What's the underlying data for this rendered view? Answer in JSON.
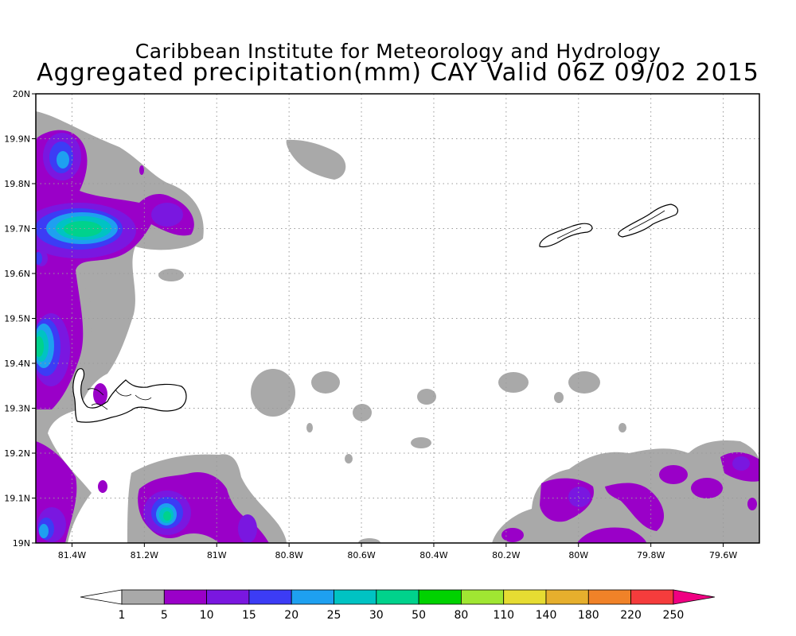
{
  "title_line1": "Caribbean Institute for Meteorology and Hydrology",
  "title_line2": "Aggregated precipitation(mm) CAY Valid 06Z 09/02 2015",
  "map": {
    "lon_range": [
      -81.5,
      -79.5
    ],
    "lat_range": [
      19.0,
      20.0
    ],
    "grid": "dotted",
    "lon_ticks": [
      {
        "value": -81.4,
        "label": "81.4W"
      },
      {
        "value": -81.2,
        "label": "81.2W"
      },
      {
        "value": -81.0,
        "label": "81W"
      },
      {
        "value": -80.8,
        "label": "80.8W"
      },
      {
        "value": -80.6,
        "label": "80.6W"
      },
      {
        "value": -80.4,
        "label": "80.4W"
      },
      {
        "value": -80.2,
        "label": "80.2W"
      },
      {
        "value": -80.0,
        "label": "80W"
      },
      {
        "value": -79.8,
        "label": "79.8W"
      },
      {
        "value": -79.6,
        "label": "79.6W"
      }
    ],
    "lat_ticks": [
      {
        "value": 19.0,
        "label": "19N"
      },
      {
        "value": 19.1,
        "label": "19.1N"
      },
      {
        "value": 19.2,
        "label": "19.2N"
      },
      {
        "value": 19.3,
        "label": "19.3N"
      },
      {
        "value": 19.4,
        "label": "19.4N"
      },
      {
        "value": 19.5,
        "label": "19.5N"
      },
      {
        "value": 19.6,
        "label": "19.6N"
      },
      {
        "value": 19.7,
        "label": "19.7N"
      },
      {
        "value": 19.8,
        "label": "19.8N"
      },
      {
        "value": 19.9,
        "label": "19.9N"
      },
      {
        "value": 20.0,
        "label": "20N"
      }
    ]
  },
  "colorbar": {
    "labels": [
      "1",
      "5",
      "10",
      "15",
      "20",
      "25",
      "30",
      "50",
      "80",
      "110",
      "140",
      "180",
      "220",
      "250"
    ],
    "low_color": "#ffffff",
    "colors": [
      "#a9a9a9",
      "#9a00c8",
      "#7a17e0",
      "#3c3cf5",
      "#1ea0f0",
      "#00c3c3",
      "#00d28c",
      "#00d200",
      "#a0e632",
      "#e6dc32",
      "#e6af2d",
      "#f08228",
      "#f53c3c"
    ],
    "high_color": "#f00082"
  },
  "precip_blobs": [
    {
      "lon": -81.4,
      "lat": 19.83,
      "level": 3
    },
    {
      "lon": -81.38,
      "lat": 19.71,
      "level": 6
    },
    {
      "lon": -81.47,
      "lat": 19.43,
      "level": 6
    },
    {
      "lon": -81.13,
      "lat": 19.07,
      "level": 6
    },
    {
      "lon": -81.47,
      "lat": 19.03,
      "level": 4
    },
    {
      "lon": -80.06,
      "lat": 19.11,
      "level": 2
    },
    {
      "lon": -79.92,
      "lat": 19.01,
      "level": 2
    },
    {
      "lon": -79.58,
      "lat": 19.17,
      "level": 2
    }
  ]
}
